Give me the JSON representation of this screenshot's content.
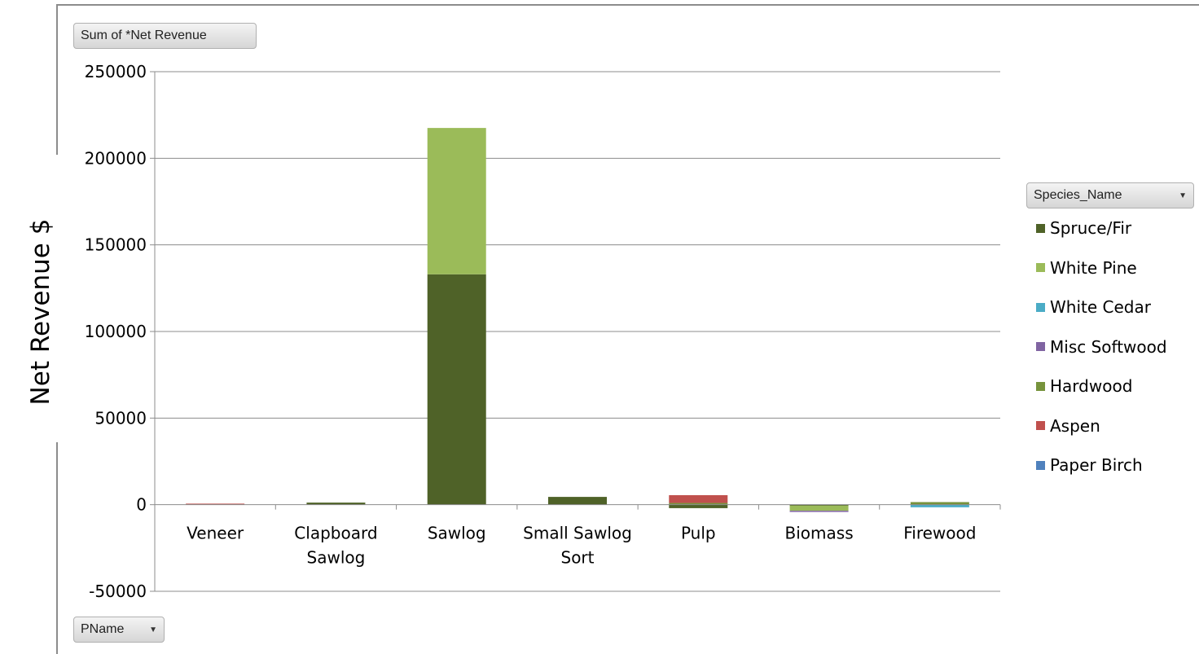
{
  "buttons": {
    "value_field": "Sum of *Net Revenue",
    "axis_field": "PName",
    "legend_field": "Species_Name",
    "dropdown_glyph": "▼"
  },
  "chart_data": {
    "type": "bar",
    "stacked": true,
    "ylabel": "Net Revenue  $",
    "xlabel": "",
    "title": "",
    "categories": [
      "Veneer",
      "Clapboard\nSawlog",
      "Sawlog",
      "Small Sawlog\nSort",
      "Pulp",
      "Biomass",
      "Firewood"
    ],
    "ylim": [
      -50000,
      250000
    ],
    "yticks": [
      -50000,
      0,
      50000,
      100000,
      150000,
      200000,
      250000
    ],
    "grid": true,
    "legend_position": "right",
    "series": [
      {
        "name": "Spruce/Fir",
        "color": "#4f6228",
        "values": [
          0,
          1200,
          133000,
          4500,
          -2000,
          -500,
          0
        ]
      },
      {
        "name": "White Pine",
        "color": "#9bbb59",
        "values": [
          0,
          0,
          84500,
          0,
          0,
          -3000,
          0
        ]
      },
      {
        "name": "White Cedar",
        "color": "#4bacc6",
        "values": [
          0,
          0,
          0,
          0,
          0,
          0,
          -1500
        ]
      },
      {
        "name": "Misc Softwood",
        "color": "#8064a2",
        "values": [
          0,
          0,
          0,
          0,
          0,
          -400,
          0
        ]
      },
      {
        "name": "Hardwood",
        "color": "#77933c",
        "values": [
          0,
          0,
          0,
          0,
          1000,
          0,
          1500
        ]
      },
      {
        "name": "Aspen",
        "color": "#c0504d",
        "values": [
          600,
          0,
          0,
          0,
          4500,
          0,
          0
        ]
      },
      {
        "name": "Paper Birch",
        "color": "#4f81bd",
        "values": [
          0,
          0,
          0,
          0,
          0,
          0,
          0
        ]
      }
    ]
  }
}
